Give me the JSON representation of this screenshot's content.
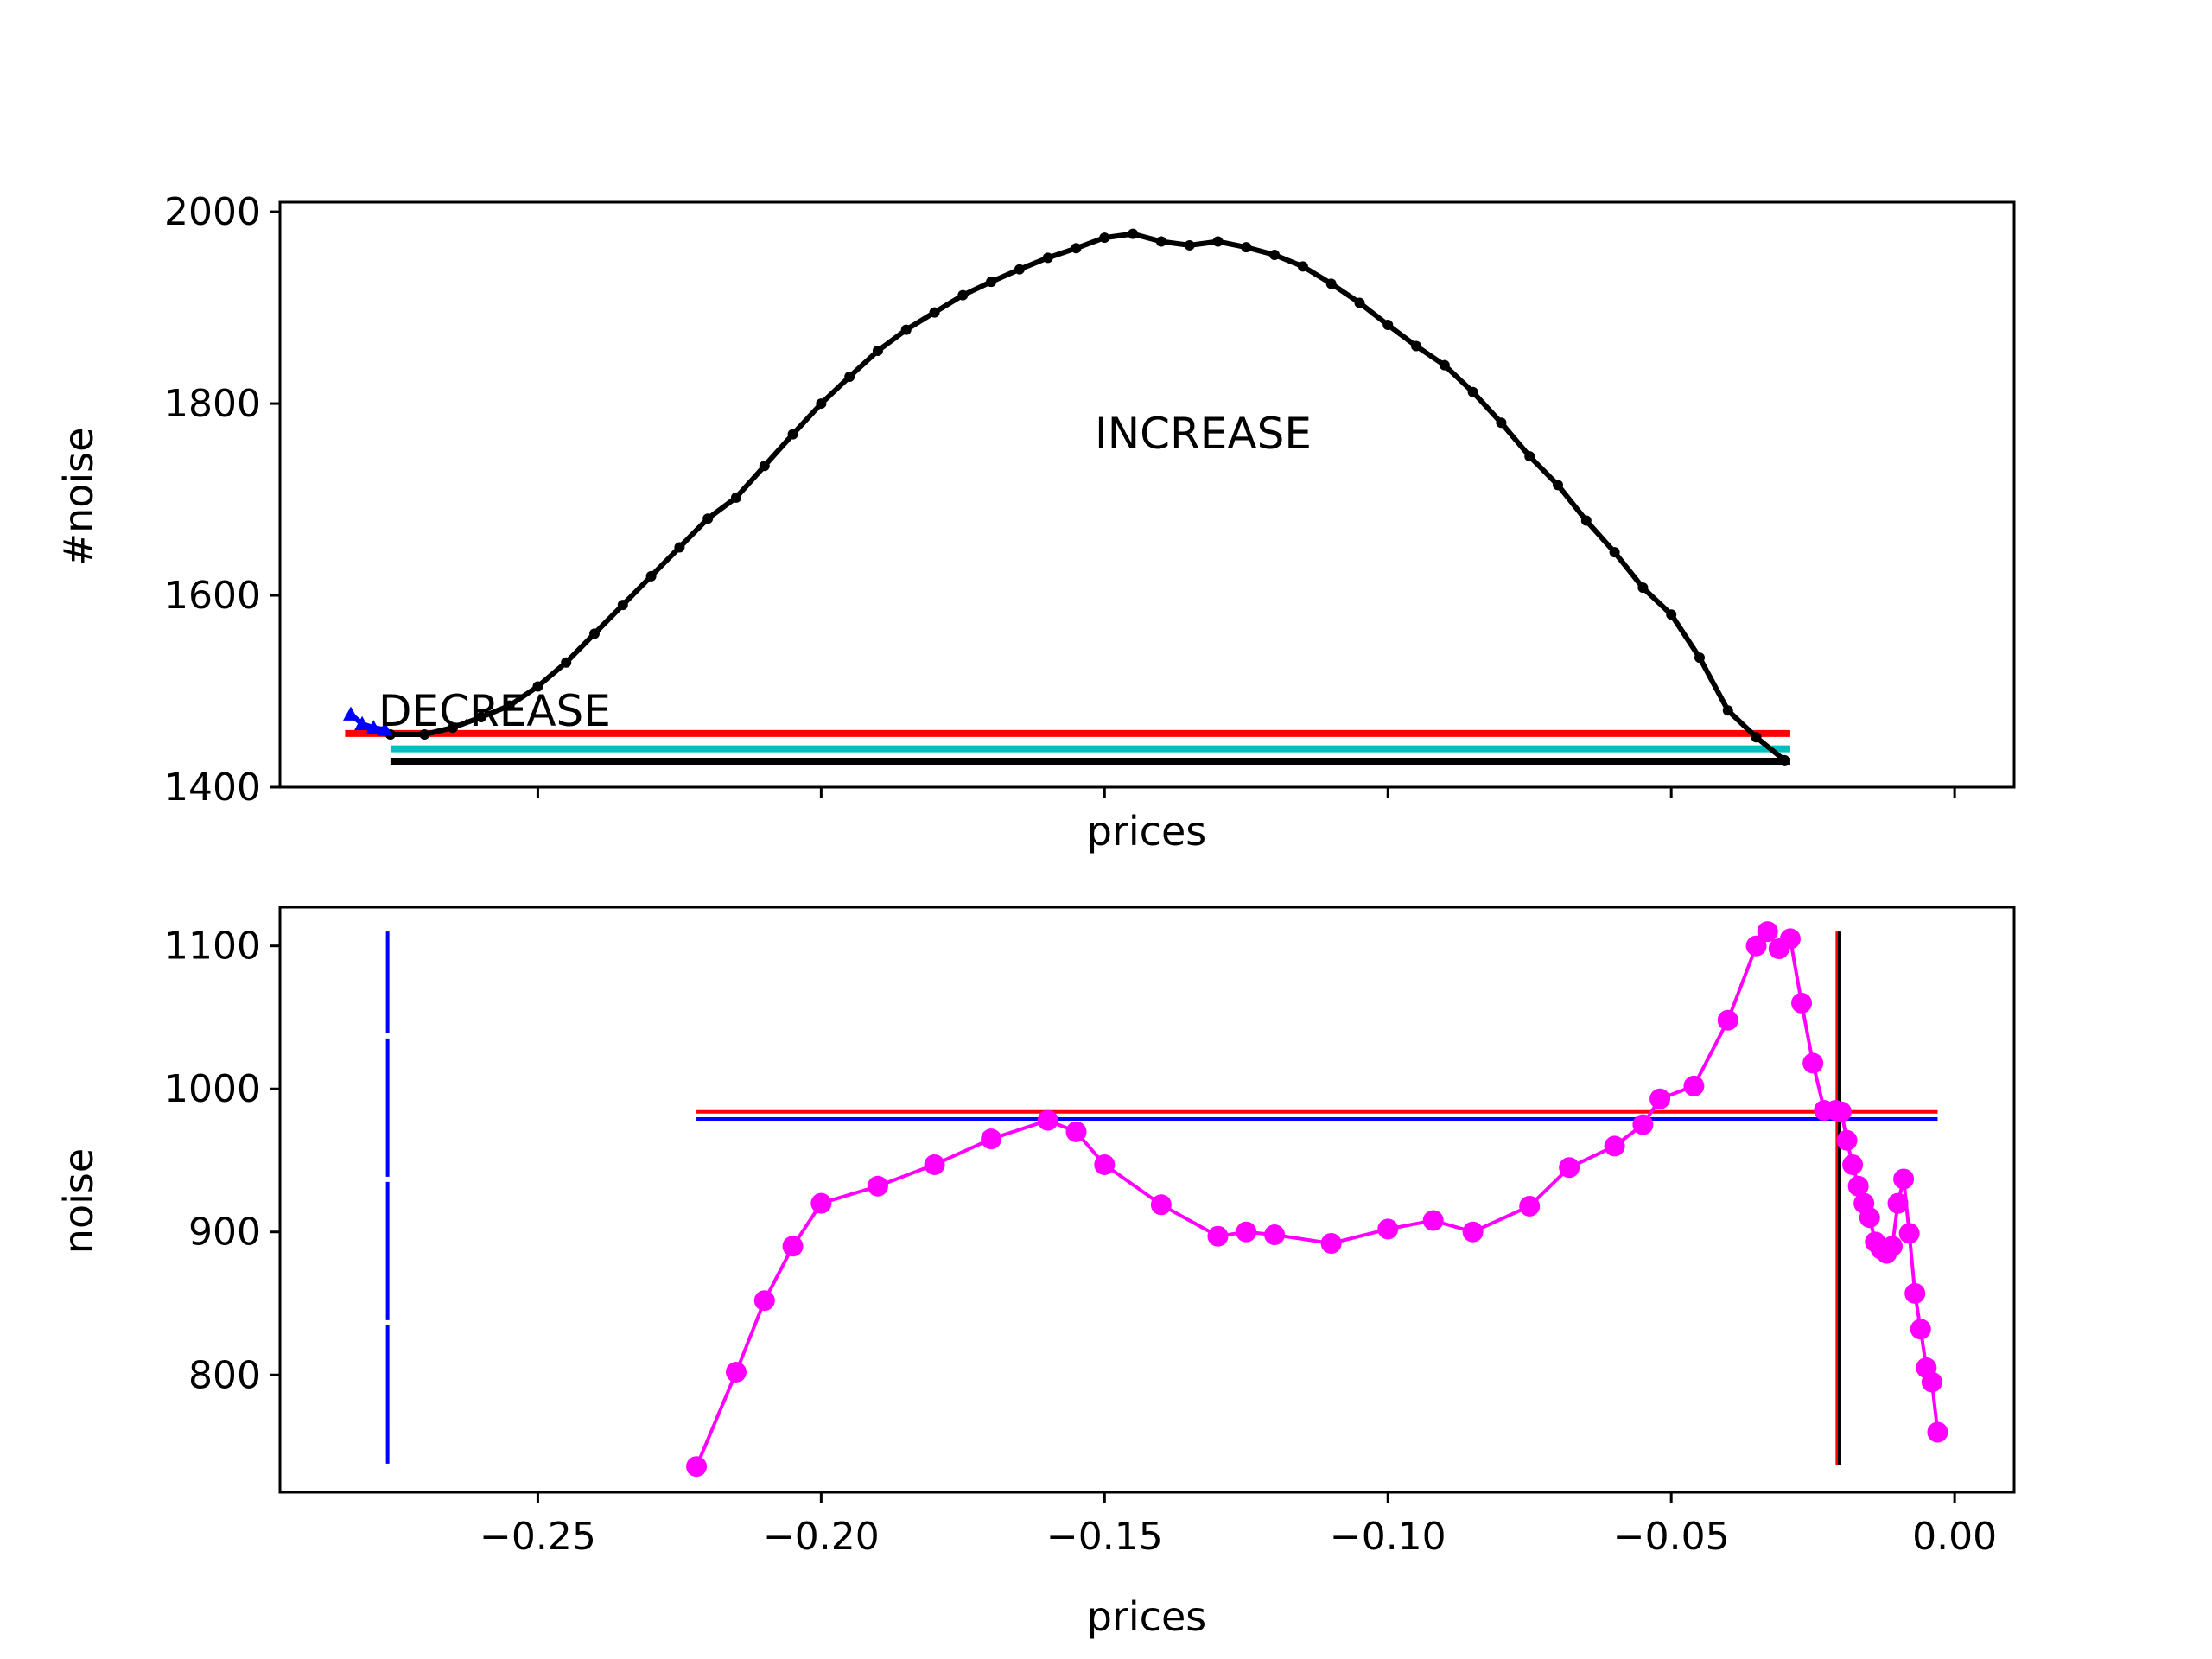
{
  "colors": {
    "black": "#000000",
    "red": "#ff0000",
    "cyan": "#00bfbf",
    "blue": "#0000ff",
    "magenta": "#ff00ff",
    "frame": "#000000"
  },
  "chart_data": [
    {
      "type": "line",
      "xlabel": "prices",
      "ylabel": "#noise",
      "xlim": [
        -0.2955,
        0.0105
      ],
      "ylim": [
        1400,
        2010
      ],
      "yticks": [
        1400,
        1600,
        1800,
        2000
      ],
      "ytick_labels": [
        "1400",
        "1600",
        "1800",
        "2000"
      ],
      "xticks": [
        -0.25,
        -0.2,
        -0.15,
        -0.1,
        -0.05,
        0.0
      ],
      "xtick_labels_visible": false,
      "grid": false,
      "annotations": [
        {
          "text": "INCREASE",
          "x": -0.152,
          "y": 1755
        },
        {
          "text": "DECREASE",
          "x": -0.276,
          "y": 1478
        }
      ],
      "series": [
        {
          "color": "#000000",
          "marker": "circle",
          "x": [
            -0.276,
            -0.27,
            -0.265,
            -0.26,
            -0.255,
            -0.25,
            -0.245,
            -0.24,
            -0.235,
            -0.23,
            -0.225,
            -0.22,
            -0.215,
            -0.21,
            -0.205,
            -0.2,
            -0.195,
            -0.19,
            -0.185,
            -0.18,
            -0.175,
            -0.17,
            -0.165,
            -0.16,
            -0.155,
            -0.15,
            -0.145,
            -0.14,
            -0.135,
            -0.13,
            -0.125,
            -0.12,
            -0.115,
            -0.11,
            -0.105,
            -0.1,
            -0.095,
            -0.09,
            -0.085,
            -0.08,
            -0.075,
            -0.07,
            -0.065,
            -0.06,
            -0.055,
            -0.05,
            -0.045,
            -0.04,
            -0.035,
            -0.03
          ],
          "y": [
            1455,
            1455,
            1462,
            1473,
            1485,
            1505,
            1530,
            1560,
            1590,
            1620,
            1650,
            1680,
            1702,
            1735,
            1768,
            1800,
            1828,
            1855,
            1877,
            1895,
            1913,
            1927,
            1940,
            1952,
            1962,
            1973,
            1977,
            1969,
            1965,
            1969,
            1963,
            1955,
            1943,
            1925,
            1905,
            1882,
            1860,
            1840,
            1812,
            1780,
            1745,
            1715,
            1678,
            1645,
            1608,
            1580,
            1535,
            1480,
            1452,
            1428
          ]
        },
        {
          "color": "#0000ff",
          "marker": "triangle",
          "x": [
            -0.283,
            -0.281,
            -0.279,
            -0.277
          ],
          "y": [
            1476,
            1466,
            1462,
            1460
          ]
        }
      ],
      "hlines": [
        {
          "color": "#ff0000",
          "y": 1456,
          "xmin": -0.284,
          "xmax": -0.029
        },
        {
          "color": "#00bfbf",
          "y": 1440,
          "xmin": -0.276,
          "xmax": -0.029
        },
        {
          "color": "#000000",
          "y": 1427,
          "xmin": -0.276,
          "xmax": -0.029
        }
      ]
    },
    {
      "type": "line",
      "xlabel": "prices",
      "ylabel": "noise",
      "xlim": [
        -0.2955,
        0.0105
      ],
      "ylim": [
        718,
        1127
      ],
      "yticks": [
        800,
        900,
        1000,
        1100
      ],
      "ytick_labels": [
        "800",
        "900",
        "1000",
        "1100"
      ],
      "xticks": [
        -0.25,
        -0.2,
        -0.15,
        -0.1,
        -0.05,
        0.0
      ],
      "xtick_labels": [
        "−0.25",
        "−0.20",
        "−0.15",
        "−0.10",
        "−0.05",
        "0.00"
      ],
      "grid": false,
      "series": [
        {
          "color": "#ff00ff",
          "marker": "circle",
          "x": [
            -0.222,
            -0.215,
            -0.21,
            -0.205,
            -0.2,
            -0.19,
            -0.18,
            -0.17,
            -0.16,
            -0.155,
            -0.15,
            -0.14,
            -0.13,
            -0.125,
            -0.12,
            -0.11,
            -0.1,
            -0.092,
            -0.085,
            -0.075,
            -0.068,
            -0.06,
            -0.055,
            -0.052,
            -0.046,
            -0.04,
            -0.035,
            -0.033,
            -0.031,
            -0.029,
            -0.027,
            -0.025,
            -0.023,
            -0.021,
            -0.02,
            -0.019,
            -0.018,
            -0.017,
            -0.016,
            -0.015,
            -0.014,
            -0.013,
            -0.012,
            -0.011,
            -0.01,
            -0.009,
            -0.008,
            -0.007,
            -0.006,
            -0.005,
            -0.004,
            -0.003
          ],
          "y": [
            736,
            802,
            852,
            890,
            920,
            932,
            947,
            965,
            978,
            970,
            947,
            919,
            897,
            900,
            898,
            892,
            902,
            908,
            900,
            918,
            945,
            960,
            975,
            993,
            1002,
            1048,
            1100,
            1110,
            1098,
            1105,
            1060,
            1018,
            985,
            985,
            984,
            964,
            947,
            932,
            920,
            910,
            893,
            888,
            885,
            890,
            920,
            937,
            899,
            857,
            832,
            805,
            795,
            760
          ]
        }
      ],
      "hlines": [
        {
          "color": "#ff0000",
          "y": 984,
          "xmin": -0.222,
          "xmax": -0.003
        },
        {
          "color": "#0000ff",
          "y": 979,
          "xmin": -0.222,
          "xmax": -0.003
        }
      ],
      "vlines": [
        {
          "color": "#0000ff",
          "x": -0.2765,
          "ymin": 738,
          "ymax": 1110,
          "dashed": true
        },
        {
          "color": "#ff0000",
          "x": -0.0207,
          "ymin": 737,
          "ymax": 1110
        },
        {
          "color": "#000000",
          "x": -0.0203,
          "ymin": 737,
          "ymax": 1110
        }
      ]
    }
  ]
}
